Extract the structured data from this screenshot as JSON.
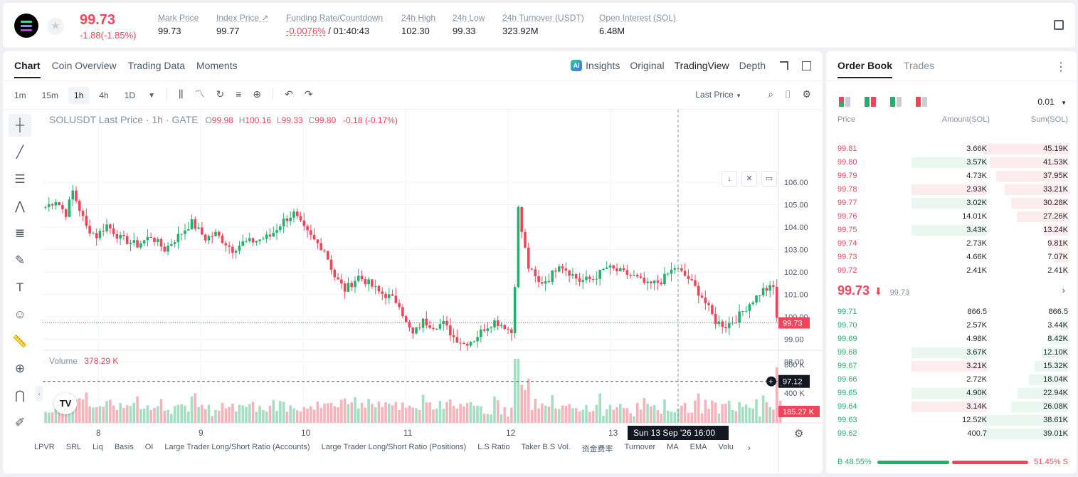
{
  "ticker": {
    "last_price": "99.73",
    "change": "-1.88(-1.85%)",
    "stats": [
      {
        "label": "Mark Price",
        "value": "99.73"
      },
      {
        "label": "Index Price ↗",
        "value": "99.77"
      },
      {
        "label": "Funding Rate/Countdown",
        "value_neg": "-0.0076%",
        "value": " / 01:40:43"
      },
      {
        "label": "24h High",
        "value": "102.30"
      },
      {
        "label": "24h Low",
        "value": "99.33"
      },
      {
        "label": "24h Turnover (USDT)",
        "value": "323.92M"
      },
      {
        "label": "Open Interest (SOL)",
        "value": "6.48M"
      }
    ]
  },
  "chart_tabs": [
    "Chart",
    "Coin Overview",
    "Trading Data",
    "Moments"
  ],
  "chart_views": {
    "insights": "Insights",
    "original": "Original",
    "tradingview": "TradingView",
    "depth": "Depth"
  },
  "timeframes": [
    "1m",
    "15m",
    "1h",
    "4h",
    "1D"
  ],
  "active_timeframe": "1h",
  "price_type": "Last Price",
  "legend": {
    "symbol": "SOLUSDT Last Price · 1h · GATE",
    "o": "99.98",
    "h": "100.16",
    "l": "99.33",
    "c": "99.80",
    "chg": "-0.18 (-0.17%)"
  },
  "volume_legend": {
    "label": "Volume",
    "value": "378.29 K"
  },
  "price_labels": {
    "current": "99.73",
    "crosshair": "97.12",
    "vol_current": "185.27 K"
  },
  "crosshair_time": "Sun 13 Sep '26   16:00",
  "indicators": [
    "LPVR",
    "SRL",
    "Liq",
    "Basis",
    "OI",
    "Large Trader Long/Short Ratio (Accounts)",
    "Large Trader Long/Short Ratio (Positions)",
    "L.S Ratio",
    "Taker B.S Vol.",
    "资金费率",
    "Turnover",
    "MA",
    "EMA",
    "Volu"
  ],
  "chart_data": {
    "type": "candlestick",
    "title": "SOLUSDT Last Price · 1h · GATE",
    "xlabel": "",
    "ylabel": "",
    "x_ticks": [
      "8",
      "9",
      "10",
      "11",
      "12",
      "13"
    ],
    "y_ticks": [
      "106.00",
      "105.00",
      "104.00",
      "103.00",
      "102.00",
      "101.00",
      "100.00",
      "99.00",
      "98.00"
    ],
    "volume_ticks": [
      "800 K",
      "400 K"
    ],
    "ylim": [
      97.0,
      106.3
    ],
    "anchors": [
      [
        0,
        104.9
      ],
      [
        3,
        105.2
      ],
      [
        6,
        104.6
      ],
      [
        8,
        105.6
      ],
      [
        12,
        104.0
      ],
      [
        15,
        103.6
      ],
      [
        18,
        104.1
      ],
      [
        22,
        103.5
      ],
      [
        27,
        103.2
      ],
      [
        31,
        103.6
      ],
      [
        35,
        103.0
      ],
      [
        39,
        103.6
      ],
      [
        43,
        104.2
      ],
      [
        47,
        103.5
      ],
      [
        50,
        103.7
      ],
      [
        55,
        103.0
      ],
      [
        58,
        103.3
      ],
      [
        62,
        103.4
      ],
      [
        66,
        103.6
      ],
      [
        70,
        104.3
      ],
      [
        73,
        104.6
      ],
      [
        76,
        103.9
      ],
      [
        79,
        103.4
      ],
      [
        82,
        103.0
      ],
      [
        85,
        101.8
      ],
      [
        88,
        101.2
      ],
      [
        92,
        101.8
      ],
      [
        95,
        101.5
      ],
      [
        98,
        101.1
      ],
      [
        101,
        100.9
      ],
      [
        104,
        100.6
      ],
      [
        106,
        99.7
      ],
      [
        108,
        99.2
      ],
      [
        111,
        99.8
      ],
      [
        114,
        99.6
      ],
      [
        117,
        99.7
      ],
      [
        120,
        99.1
      ],
      [
        123,
        98.8
      ],
      [
        126,
        99.0
      ],
      [
        129,
        99.5
      ],
      [
        132,
        99.8
      ],
      [
        135,
        99.6
      ],
      [
        137,
        99.3
      ],
      [
        138,
        101.5
      ],
      [
        139,
        104.8
      ],
      [
        140,
        103.8
      ],
      [
        142,
        102.2
      ],
      [
        145,
        101.5
      ],
      [
        148,
        101.7
      ],
      [
        151,
        102.4
      ],
      [
        154,
        102.0
      ],
      [
        157,
        101.6
      ],
      [
        161,
        101.7
      ],
      [
        165,
        102.2
      ],
      [
        169,
        102.0
      ],
      [
        173,
        101.8
      ],
      [
        177,
        101.4
      ],
      [
        181,
        101.6
      ],
      [
        185,
        102.2
      ],
      [
        189,
        101.7
      ],
      [
        193,
        100.9
      ],
      [
        197,
        99.8
      ],
      [
        200,
        99.6
      ],
      [
        203,
        99.9
      ],
      [
        207,
        100.6
      ],
      [
        211,
        101.2
      ],
      [
        214,
        101.3
      ],
      [
        215,
        100.0
      ],
      [
        216,
        99.7
      ]
    ]
  },
  "orderbook": {
    "tabs": [
      "Order Book",
      "Trades"
    ],
    "tick": "0.01",
    "headers": {
      "price": "Price",
      "amount": "Amount(SOL)",
      "sum": "Sum(SOL)"
    },
    "asks": [
      {
        "p": "99.81",
        "a": "3.66K",
        "s": "45.19K",
        "af": 0.26,
        "sf": 1.0,
        "at": "n"
      },
      {
        "p": "99.80",
        "a": "3.57K",
        "s": "41.53K",
        "af": 1.0,
        "sf": 0.92,
        "at": "g"
      },
      {
        "p": "99.79",
        "a": "4.73K",
        "s": "37.95K",
        "af": 0.34,
        "sf": 0.84,
        "at": "n"
      },
      {
        "p": "99.78",
        "a": "2.93K",
        "s": "33.21K",
        "af": 1.0,
        "sf": 0.74,
        "at": "r"
      },
      {
        "p": "99.77",
        "a": "3.02K",
        "s": "30.28K",
        "af": 1.0,
        "sf": 0.67,
        "at": "g"
      },
      {
        "p": "99.76",
        "a": "14.01K",
        "s": "27.26K",
        "af": 1.0,
        "sf": 0.6,
        "at": "n"
      },
      {
        "p": "99.75",
        "a": "3.43K",
        "s": "13.24K",
        "af": 1.0,
        "sf": 0.29,
        "at": "g"
      },
      {
        "p": "99.74",
        "a": "2.73K",
        "s": "9.81K",
        "af": 0.2,
        "sf": 0.22,
        "at": "n"
      },
      {
        "p": "99.73",
        "a": "4.66K",
        "s": "7.07K",
        "af": 0.34,
        "sf": 0.16,
        "at": "n"
      },
      {
        "p": "99.72",
        "a": "2.41K",
        "s": "2.41K",
        "af": 0.17,
        "sf": 0.05,
        "at": "n"
      }
    ],
    "mid": {
      "price": "99.73",
      "arrow": "⬇",
      "mark": "99.73"
    },
    "bids": [
      {
        "p": "99.71",
        "a": "866.5",
        "s": "866.5",
        "af": 0.06,
        "sf": 0.02,
        "at": "n"
      },
      {
        "p": "99.70",
        "a": "2.57K",
        "s": "3.44K",
        "af": 0.18,
        "sf": 0.09,
        "at": "n"
      },
      {
        "p": "99.69",
        "a": "4.98K",
        "s": "8.42K",
        "af": 0.36,
        "sf": 0.22,
        "at": "n"
      },
      {
        "p": "99.68",
        "a": "3.67K",
        "s": "12.10K",
        "af": 1.0,
        "sf": 0.31,
        "at": "g"
      },
      {
        "p": "99.67",
        "a": "3.21K",
        "s": "15.32K",
        "af": 1.0,
        "sf": 0.39,
        "at": "r"
      },
      {
        "p": "99.66",
        "a": "2.72K",
        "s": "18.04K",
        "af": 0.19,
        "sf": 0.46,
        "at": "n"
      },
      {
        "p": "99.65",
        "a": "4.90K",
        "s": "22.94K",
        "af": 1.0,
        "sf": 0.59,
        "at": "g"
      },
      {
        "p": "99.64",
        "a": "3.14K",
        "s": "26.08K",
        "af": 1.0,
        "sf": 0.67,
        "at": "r"
      },
      {
        "p": "99.63",
        "a": "12.52K",
        "s": "38.61K",
        "af": 0.89,
        "sf": 0.99,
        "at": "n"
      },
      {
        "p": "99.62",
        "a": "400.7",
        "s": "39.01K",
        "af": 0.03,
        "sf": 1.0,
        "at": "n"
      }
    ],
    "ratio": {
      "buy": "B 48.55%",
      "sell": "51.45% S",
      "buy_frac": 0.4855
    }
  },
  "colors": {
    "up": "#20b26c",
    "down": "#f0445a",
    "up_light": "#e9f7f0",
    "down_light": "#fdeced",
    "accent": "#1d2129"
  }
}
